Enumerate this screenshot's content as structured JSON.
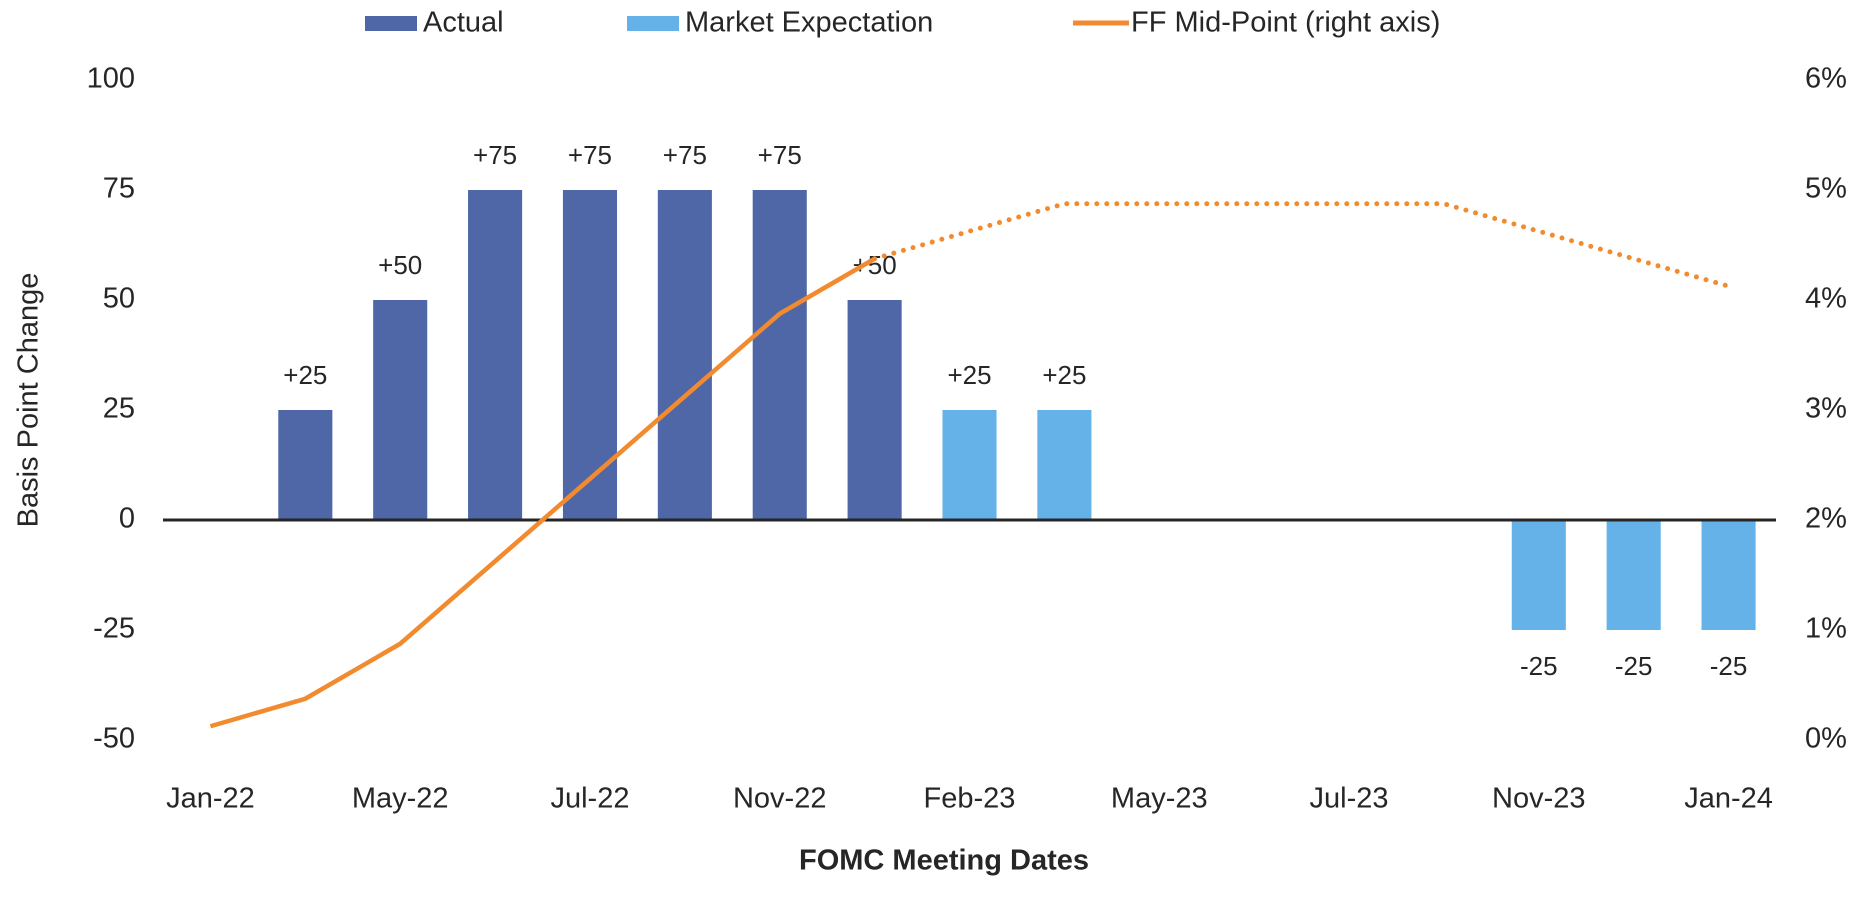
{
  "chart_data": {
    "type": "bar",
    "x_label": "FOMC Meeting Dates",
    "y_label": "Basis Point Change",
    "categories": [
      "Jan-22",
      null,
      "May-22",
      null,
      "Jul-22",
      null,
      "Nov-22",
      null,
      "Feb-23",
      null,
      "May-23",
      null,
      "Jul-23",
      null,
      "Nov-23",
      null,
      "Jan-24"
    ],
    "series": [
      {
        "name": "Actual",
        "color": "#4f67a6",
        "values": [
          null,
          25,
          50,
          75,
          75,
          75,
          75,
          50,
          null,
          null,
          null,
          null,
          null,
          null,
          null,
          null,
          null
        ],
        "value_labels": [
          null,
          "+25",
          "+50",
          "+75",
          "+75",
          "+75",
          "+75",
          "+50",
          null,
          null,
          null,
          null,
          null,
          null,
          null,
          null,
          null
        ]
      },
      {
        "name": "Market Expectation",
        "color": "#65b2e8",
        "values": [
          null,
          null,
          null,
          null,
          null,
          null,
          null,
          null,
          25,
          25,
          null,
          null,
          null,
          null,
          -25,
          -25,
          -25
        ],
        "value_labels": [
          null,
          null,
          null,
          null,
          null,
          null,
          null,
          null,
          "+25",
          "+25",
          null,
          null,
          null,
          null,
          "-25",
          "-25",
          "-25"
        ]
      },
      {
        "name": "FF Mid-Point (right axis)",
        "type": "line",
        "axis": "y2",
        "color": "#f28a30",
        "dashed_from": 7,
        "values": [
          0.125,
          0.375,
          0.875,
          1.625,
          2.375,
          3.125,
          3.875,
          4.375,
          4.625,
          4.875,
          4.875,
          4.875,
          4.875,
          4.875,
          4.625,
          4.375,
          4.125
        ]
      }
    ],
    "ylim": [
      -50,
      100
    ],
    "yticks": [
      -50,
      -25,
      0,
      25,
      50,
      75,
      100
    ],
    "y2lim": [
      0,
      6
    ],
    "y2ticks": [
      {
        "value": 0,
        "label": "0%"
      },
      {
        "value": 1,
        "label": "1%"
      },
      {
        "value": 2,
        "label": "2%"
      },
      {
        "value": 3,
        "label": "3%"
      },
      {
        "value": 4,
        "label": "4%"
      },
      {
        "value": 5,
        "label": "5%"
      },
      {
        "value": 6,
        "label": "6%"
      }
    ],
    "grid": false,
    "legend": "top"
  }
}
